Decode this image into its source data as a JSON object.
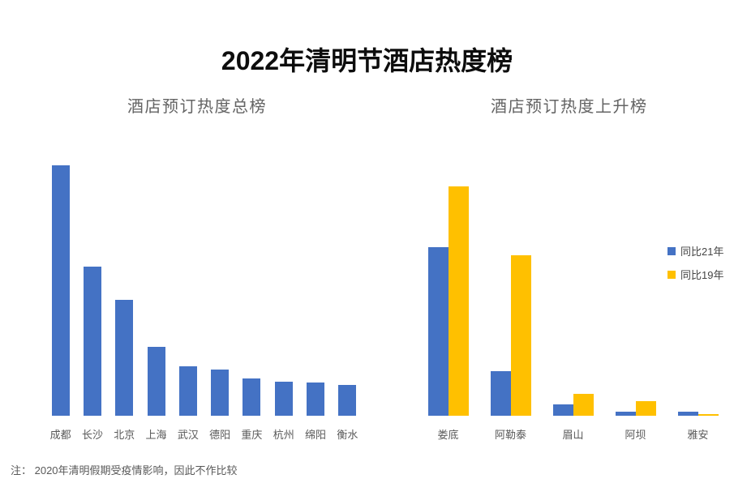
{
  "page": {
    "title": "2022年清明节酒店热度榜",
    "note": "注： 2020年清明假期受疫情影响，因此不作比较"
  },
  "colors": {
    "bar_blue": "#4472C4",
    "bar_gold": "#FFC000",
    "title_text": "#0d0d0d",
    "muted_text": "#595959"
  },
  "chart_data": [
    {
      "type": "bar",
      "title": "酒店预订热度总榜",
      "categories": [
        "成都",
        "长沙",
        "北京",
        "上海",
        "武汉",
        "德阳",
        "重庆",
        "杭州",
        "绵阳",
        "衡水"
      ],
      "values": [
        100,
        59.5,
        46.3,
        27.5,
        19.7,
        18.4,
        14.9,
        13.6,
        13.3,
        12.3
      ],
      "bar_color": "#4472C4",
      "xlabel": "",
      "ylabel": "",
      "ylim": [
        0,
        100
      ],
      "value_scale": "relative heat index (no y-axis shown in figure)",
      "grid": false,
      "legend_position": "none"
    },
    {
      "type": "bar",
      "title": "酒店预订热度上升榜",
      "categories": [
        "娄底",
        "阿勒泰",
        "眉山",
        "阿坝",
        "雅安"
      ],
      "series": [
        {
          "name": "同比21年",
          "color": "#4472C4",
          "values": [
            73.5,
            19.6,
            4.8,
            1.7,
            1.7
          ]
        },
        {
          "name": "同比19年",
          "color": "#FFC000",
          "values": [
            100,
            70,
            9.7,
            6.4,
            0.8
          ]
        }
      ],
      "xlabel": "",
      "ylabel": "",
      "ylim": [
        0,
        100
      ],
      "value_scale": "relative heat index (no y-axis shown in figure)",
      "grid": false,
      "legend_position": "right"
    }
  ]
}
